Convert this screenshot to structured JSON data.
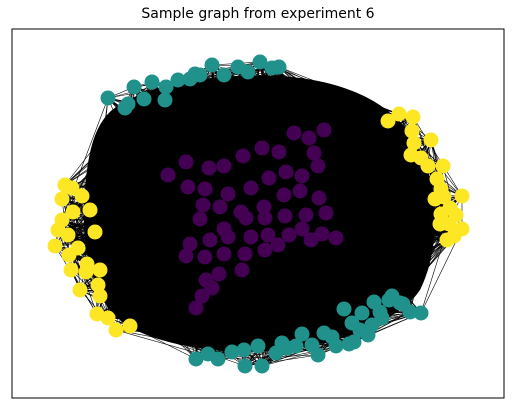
{
  "title": "Sample graph from experiment 6",
  "colors": {
    "purple": "#440154",
    "teal": "#21918c",
    "yellow": "#fde725",
    "edge": "#000000",
    "frame": "#000000"
  },
  "graph": {
    "communities": [
      "purple",
      "teal",
      "yellow"
    ],
    "description_note": ""
  }
}
